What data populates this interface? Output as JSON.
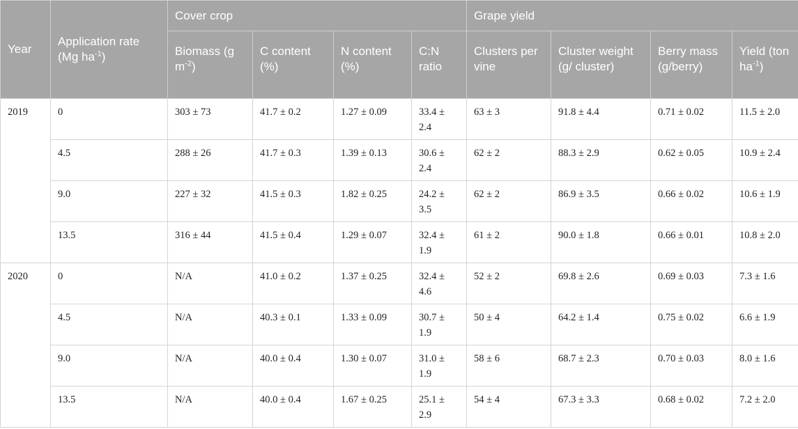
{
  "header": {
    "year": "Year",
    "application_rate": "Application rate (Mg ha",
    "application_rate_sup": "-1",
    "application_rate_end": ")",
    "cover_crop": "Cover crop",
    "grape_yield": "Grape yield",
    "biomass": "Biomass (g m",
    "biomass_sup": "-2",
    "biomass_end": ")",
    "c_content": "C content (%)",
    "n_content": "N content (%)",
    "cn_ratio": "C:N ratio",
    "clusters": "Clusters per vine",
    "cluster_weight": "Cluster weight (g/ cluster)",
    "berry_mass": "Berry mass (g/berry)",
    "yield": "Yield (ton ha",
    "yield_sup": "-1",
    "yield_end": ")"
  },
  "groups": [
    {
      "year": "2019",
      "rows": [
        {
          "rate": "0",
          "biomass": "303 ± 73",
          "c": "41.7 ± 0.2",
          "n": "1.27 ± 0.09",
          "cn": "33.4 ± 2.4",
          "clusters": "63 ± 3",
          "cw": "91.8 ± 4.4",
          "bm": "0.71 ± 0.02",
          "yield": "11.5 ± 2.0"
        },
        {
          "rate": "4.5",
          "biomass": "288 ± 26",
          "c": "41.7 ± 0.3",
          "n": "1.39 ± 0.13",
          "cn": "30.6 ± 2.4",
          "clusters": "62 ± 2",
          "cw": "88.3 ± 2.9",
          "bm": "0.62 ± 0.05",
          "yield": "10.9 ± 2.4"
        },
        {
          "rate": "9.0",
          "biomass": "227 ± 32",
          "c": "41.5 ± 0.3",
          "n": "1.82 ± 0.25",
          "cn": "24.2 ± 3.5",
          "clusters": "62 ± 2",
          "cw": "86.9 ± 3.5",
          "bm": "0.66 ± 0.02",
          "yield": "10.6 ± 1.9"
        },
        {
          "rate": "13.5",
          "biomass": "316 ± 44",
          "c": "41.5 ± 0.4",
          "n": "1.29 ± 0.07",
          "cn": "32.4 ± 1.9",
          "clusters": "61 ± 2",
          "cw": "90.0 ± 1.8",
          "bm": "0.66 ± 0.01",
          "yield": "10.8 ± 2.0"
        }
      ]
    },
    {
      "year": "2020",
      "rows": [
        {
          "rate": "0",
          "biomass": "N/A",
          "c": "41.0 ± 0.2",
          "n": "1.37 ± 0.25",
          "cn": "32.4 ± 4.6",
          "clusters": "52 ± 2",
          "cw": "69.8 ± 2.6",
          "bm": "0.69 ± 0.03",
          "yield": "7.3 ± 1.6"
        },
        {
          "rate": "4.5",
          "biomass": "N/A",
          "c": "40.3 ± 0.1",
          "n": "1.33 ± 0.09",
          "cn": "30.7 ± 1.9",
          "clusters": "50 ± 4",
          "cw": "64.2 ± 1.4",
          "bm": "0.75 ± 0.02",
          "yield": "6.6 ± 1.9"
        },
        {
          "rate": "9.0",
          "biomass": "N/A",
          "c": "40.0 ± 0.4",
          "n": "1.30 ± 0.07",
          "cn": "31.0 ± 1.9",
          "clusters": "58 ± 6",
          "cw": "68.7 ± 2.3",
          "bm": "0.70 ± 0.03",
          "yield": "8.0 ± 1.6"
        },
        {
          "rate": "13.5",
          "biomass": "N/A",
          "c": "40.0 ± 0.4",
          "n": "1.67 ± 0.25",
          "cn": "25.1 ± 2.9",
          "clusters": "54 ± 4",
          "cw": "67.3 ± 3.3",
          "bm": "0.68 ± 0.02",
          "yield": "7.2 ± 2.0"
        }
      ]
    }
  ]
}
